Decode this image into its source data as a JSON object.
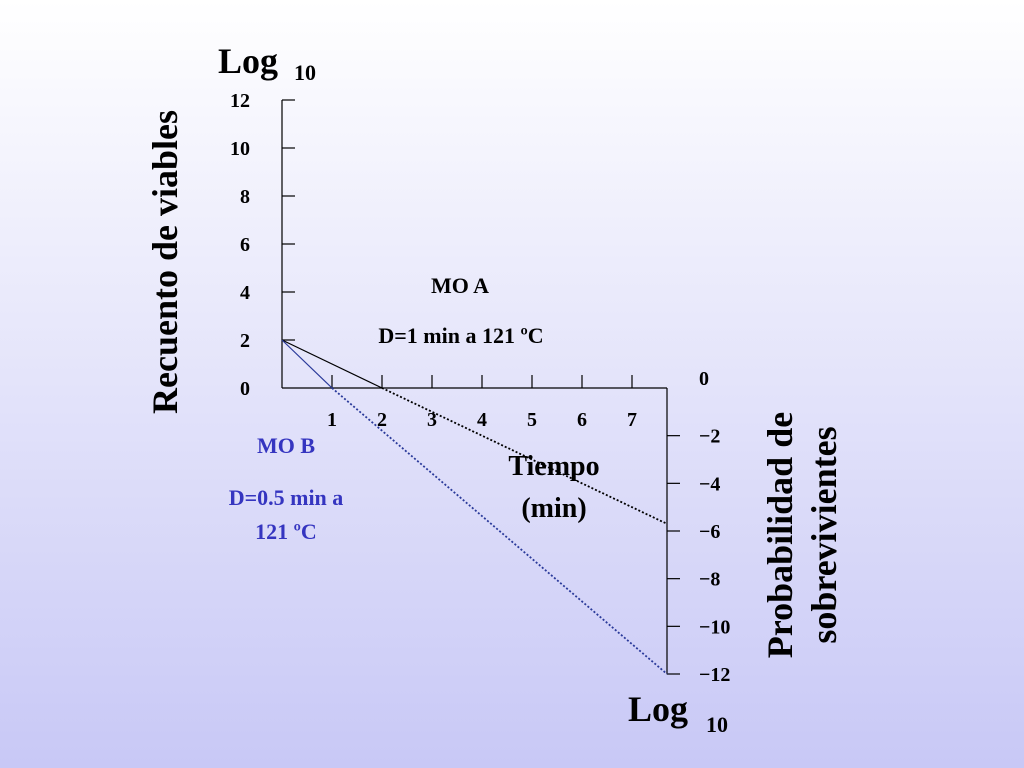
{
  "chart_data": {
    "type": "line",
    "left_axis": {
      "title": "Recuento de viables",
      "log_label": "Log",
      "log_base": "10",
      "ticks": [
        "0",
        "2",
        "4",
        "6",
        "8",
        "10",
        "12"
      ],
      "range": [
        0,
        12
      ]
    },
    "right_axis": {
      "title_line1": "Probabilidad de",
      "title_line2": "sobrevivientes",
      "log_label": "Log",
      "log_base": "10",
      "ticks": [
        "0",
        "−2",
        "−4",
        "−6",
        "−8",
        "−10",
        "−12"
      ],
      "range": [
        -12,
        0
      ]
    },
    "x_axis": {
      "title_line1": "Tiempo",
      "title_line2": "(min)",
      "ticks": [
        "1",
        "2",
        "3",
        "4",
        "5",
        "6",
        "7"
      ],
      "range": [
        0,
        7.7
      ]
    },
    "series": [
      {
        "name": "MO A",
        "label": "D=1 min a 121 ºC",
        "color": "#000000",
        "x": [
          0,
          2,
          7.7
        ],
        "y": [
          2,
          0,
          -5.7
        ]
      },
      {
        "name": "MO B",
        "label_line1": "D=0.5 min a",
        "label_line2": "121 ºC",
        "color": "#2a3a9a",
        "x": [
          0,
          1,
          7.7
        ],
        "y": [
          2,
          0,
          -12
        ]
      }
    ]
  }
}
